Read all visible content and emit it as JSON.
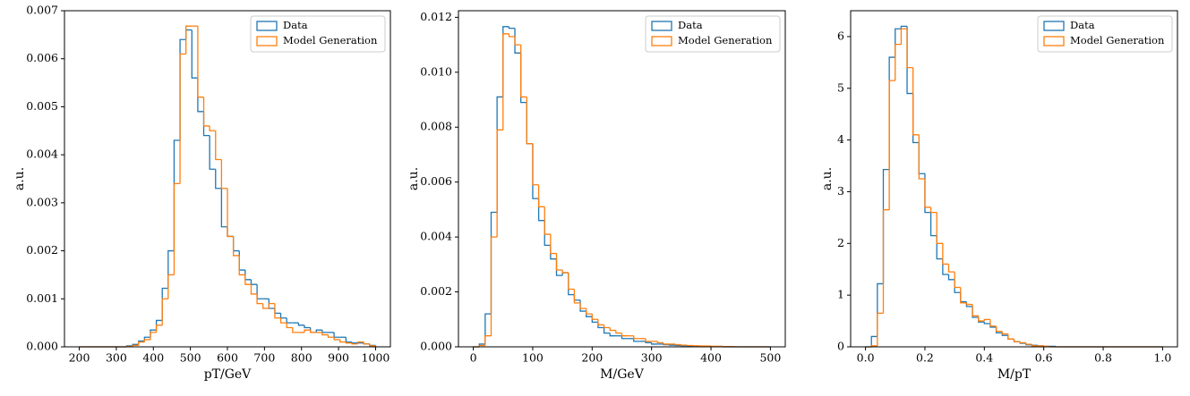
{
  "chart_data": [
    {
      "type": "histogram",
      "xlabel": "pT/GeV",
      "ylabel": "a.u.",
      "legend": "upper right",
      "bins": [
        200,
        216,
        232,
        248,
        264,
        280,
        296,
        312,
        328,
        344,
        360,
        376,
        392,
        408,
        424,
        440,
        456,
        472,
        488,
        504,
        520,
        536,
        552,
        568,
        584,
        600,
        616,
        632,
        648,
        664,
        680,
        696,
        712,
        728,
        744,
        760,
        776,
        792,
        808,
        824,
        840,
        856,
        872,
        888,
        904,
        920,
        936,
        952,
        968,
        984,
        1000
      ],
      "series": [
        {
          "name": "Data",
          "color": "#1f77b4",
          "values": [
            0,
            0,
            0,
            0,
            0,
            0,
            0,
            0,
            2e-05,
            5e-05,
            0.00012,
            0.0002,
            0.00035,
            0.00055,
            0.00122,
            0.002,
            0.0043,
            0.0064,
            0.0066,
            0.0056,
            0.0049,
            0.0044,
            0.0037,
            0.0033,
            0.0025,
            0.0023,
            0.002,
            0.0016,
            0.0014,
            0.0013,
            0.001,
            0.001,
            0.0008,
            0.0007,
            0.0006,
            0.0005,
            0.0005,
            0.00045,
            0.0004,
            0.0003,
            0.00035,
            0.0003,
            0.0003,
            0.0002,
            0.0002,
            0.0001,
            8e-05,
            8e-05,
            6e-05,
            3e-05
          ]
        },
        {
          "name": "Model Generation",
          "color": "#ff7f0e",
          "values": [
            0,
            0,
            0,
            0,
            0,
            0,
            0,
            0,
            1e-05,
            3e-05,
            0.0001,
            0.00015,
            0.0003,
            0.00045,
            0.001,
            0.0015,
            0.0034,
            0.0061,
            0.00668,
            0.00668,
            0.0052,
            0.0046,
            0.0045,
            0.0039,
            0.0033,
            0.0023,
            0.0019,
            0.0015,
            0.0013,
            0.0011,
            0.0009,
            0.0008,
            0.0009,
            0.0006,
            0.0005,
            0.0004,
            0.0003,
            0.0003,
            0.00035,
            0.0003,
            0.0003,
            0.00025,
            0.0002,
            0.00015,
            0.0001,
            8e-05,
            6e-05,
            0.0001,
            6e-05,
            2e-05
          ]
        }
      ],
      "xlim": [
        160,
        1040
      ],
      "ylim": [
        0,
        0.007
      ],
      "xticks": [
        200,
        300,
        400,
        500,
        600,
        700,
        800,
        900,
        1000
      ],
      "yticks": [
        {
          "value": 0,
          "label": "0.000"
        },
        {
          "value": 0.001,
          "label": "0.001"
        },
        {
          "value": 0.002,
          "label": "0.002"
        },
        {
          "value": 0.003,
          "label": "0.003"
        },
        {
          "value": 0.004,
          "label": "0.004"
        },
        {
          "value": 0.005,
          "label": "0.005"
        },
        {
          "value": 0.006,
          "label": "0.006"
        },
        {
          "value": 0.007,
          "label": "0.007"
        }
      ]
    },
    {
      "type": "histogram",
      "xlabel": "M/GeV",
      "ylabel": "a.u.",
      "legend": "upper right",
      "bins": [
        0,
        10,
        20,
        30,
        40,
        50,
        60,
        70,
        80,
        90,
        100,
        110,
        120,
        130,
        140,
        150,
        160,
        170,
        180,
        190,
        200,
        210,
        220,
        230,
        240,
        250,
        260,
        270,
        280,
        290,
        300,
        310,
        320,
        330,
        340,
        350,
        360,
        370,
        380,
        390,
        400,
        410,
        420,
        430,
        440,
        450,
        460,
        470,
        480,
        490,
        500
      ],
      "series": [
        {
          "name": "Data",
          "color": "#1f77b4",
          "values": [
            0,
            0.0001,
            0.0012,
            0.0049,
            0.0091,
            0.01166,
            0.0116,
            0.0107,
            0.0089,
            0.0074,
            0.0054,
            0.0046,
            0.0037,
            0.0032,
            0.0026,
            0.0027,
            0.0019,
            0.0017,
            0.0013,
            0.0011,
            0.0009,
            0.0007,
            0.0005,
            0.0004,
            0.0004,
            0.0003,
            0.0003,
            0.0002,
            0.0002,
            0.00015,
            0.0001,
            0.0001,
            8e-05,
            6e-05,
            5e-05,
            4e-05,
            3e-05,
            2e-05,
            2e-05,
            1e-05,
            1e-05,
            1e-05,
            0,
            0,
            0,
            0,
            0,
            0,
            0,
            0
          ]
        },
        {
          "name": "Model Generation",
          "color": "#ff7f0e",
          "values": [
            0,
            5e-05,
            0.0004,
            0.004,
            0.0079,
            0.0114,
            0.0113,
            0.011,
            0.0091,
            0.0074,
            0.0059,
            0.0051,
            0.0041,
            0.0034,
            0.0028,
            0.0027,
            0.0021,
            0.0016,
            0.0014,
            0.0012,
            0.001,
            0.0008,
            0.0007,
            0.0006,
            0.0005,
            0.0004,
            0.0004,
            0.0003,
            0.0003,
            0.0002,
            0.0002,
            0.00015,
            0.0001,
            0.0001,
            8e-05,
            6e-05,
            5e-05,
            4e-05,
            3e-05,
            3e-05,
            2e-05,
            2e-05,
            1e-05,
            1e-05,
            0,
            0,
            0,
            0,
            0,
            0
          ]
        }
      ],
      "xlim": [
        -25,
        525
      ],
      "ylim": [
        0,
        0.01224
      ],
      "xticks": [
        0,
        100,
        200,
        300,
        400,
        500
      ],
      "yticks": [
        {
          "value": 0,
          "label": "0.000"
        },
        {
          "value": 0.002,
          "label": "0.002"
        },
        {
          "value": 0.004,
          "label": "0.004"
        },
        {
          "value": 0.006,
          "label": "0.006"
        },
        {
          "value": 0.008,
          "label": "0.008"
        },
        {
          "value": 0.01,
          "label": "0.010"
        },
        {
          "value": 0.012,
          "label": "0.012"
        }
      ]
    },
    {
      "type": "histogram",
      "xlabel": "M/pT",
      "ylabel": "a.u.",
      "legend": "upper right",
      "bins": [
        0,
        0.02,
        0.04,
        0.06,
        0.08,
        0.1,
        0.12,
        0.14,
        0.16,
        0.18,
        0.2,
        0.22,
        0.24,
        0.26,
        0.28,
        0.3,
        0.32,
        0.34,
        0.36,
        0.38,
        0.4,
        0.42,
        0.44,
        0.46,
        0.48,
        0.5,
        0.52,
        0.54,
        0.56,
        0.58,
        0.6,
        0.62,
        0.64,
        0.66,
        0.68,
        0.7,
        0.72,
        0.74,
        0.76,
        0.78,
        0.8,
        0.82,
        0.84,
        0.86,
        0.88,
        0.9,
        0.92,
        0.94,
        0.96,
        0.98,
        1
      ],
      "series": [
        {
          "name": "Data",
          "color": "#1f77b4",
          "values": [
            0,
            0.2,
            1.22,
            3.43,
            5.6,
            6.15,
            6.2,
            4.9,
            3.95,
            3.35,
            2.6,
            2.15,
            1.7,
            1.4,
            1.3,
            1.05,
            0.87,
            0.78,
            0.57,
            0.48,
            0.45,
            0.38,
            0.27,
            0.22,
            0.15,
            0.1,
            0.07,
            0.04,
            0.03,
            0.02,
            0.01,
            0.01,
            0,
            0,
            0,
            0,
            0,
            0,
            0,
            0,
            0,
            0,
            0,
            0,
            0,
            0,
            0,
            0,
            0,
            0
          ]
        },
        {
          "name": "Model Generation",
          "color": "#ff7f0e",
          "values": [
            0,
            0.02,
            0.65,
            2.65,
            5.15,
            5.85,
            6.15,
            5.4,
            4.1,
            3.25,
            2.7,
            2.6,
            2,
            1.6,
            1.45,
            1.15,
            0.85,
            0.82,
            0.6,
            0.5,
            0.53,
            0.4,
            0.3,
            0.25,
            0.15,
            0.1,
            0.08,
            0.05,
            0.02,
            0.02,
            0.01,
            0,
            0,
            0,
            0,
            0,
            0,
            0,
            0,
            0,
            0,
            0,
            0,
            0,
            0,
            0,
            0,
            0,
            0,
            0
          ]
        }
      ],
      "xlim": [
        -0.05,
        1.05
      ],
      "ylim": [
        0,
        6.5
      ],
      "xticks": [
        {
          "value": 0,
          "label": "0.0"
        },
        {
          "value": 0.2,
          "label": "0.2"
        },
        {
          "value": 0.4,
          "label": "0.4"
        },
        {
          "value": 0.6,
          "label": "0.6"
        },
        {
          "value": 0.8,
          "label": "0.8"
        },
        {
          "value": 1,
          "label": "1.0"
        }
      ],
      "yticks": [
        0,
        1,
        2,
        3,
        4,
        5,
        6
      ]
    }
  ]
}
